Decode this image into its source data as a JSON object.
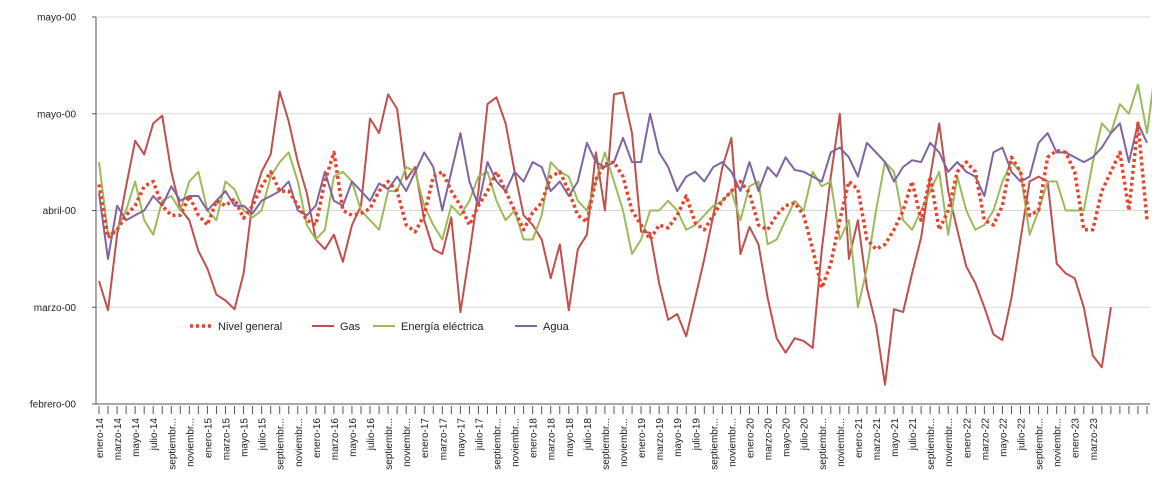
{
  "chart_data": {
    "type": "line",
    "y_tick_labels": [
      "febrero-00",
      "marzo-00",
      "abril-00",
      "mayo-00",
      "mayo-00"
    ],
    "ylim": [
      0,
      4
    ],
    "grid": "horizontal",
    "legend_position": "lower-left inside plot",
    "x_tick_labels": [
      "enero-14",
      "marzo-14",
      "mayo-14",
      "julio-14",
      "septiembr...",
      "noviembr...",
      "enero-15",
      "marzo-15",
      "mayo-15",
      "julio-15",
      "septiembr...",
      "noviembr...",
      "enero-16",
      "marzo-16",
      "mayo-16",
      "julio-16",
      "septiembr...",
      "noviembr...",
      "enero-17",
      "marzo-17",
      "mayo-17",
      "julio-17",
      "septiembr...",
      "noviembr...",
      "enero-18",
      "marzo-18",
      "mayo-18",
      "julio-18",
      "septiembr...",
      "noviembr...",
      "enero-19",
      "marzo-19",
      "mayo-19",
      "julio-19",
      "septiembr...",
      "noviembr...",
      "enero-20",
      "marzo-20",
      "mayo-20",
      "julio-20",
      "septiembr...",
      "noviembr...",
      "enero-21",
      "marzo-21",
      "mayo-21",
      "julio-21",
      "septiembr...",
      "noviembr...",
      "enero-22",
      "marzo-22",
      "mayo-22",
      "julio-22",
      "septiembr...",
      "noviembr...",
      "enero-23",
      "marzo-23"
    ],
    "series": [
      {
        "name": "Nivel general",
        "color": "#e8432e",
        "style": "dotted",
        "values": [
          2.27,
          1.72,
          1.8,
          1.95,
          2.05,
          2.25,
          2.3,
          2.05,
          1.95,
          1.95,
          2.15,
          1.95,
          1.85,
          2.1,
          2.05,
          2.12,
          1.92,
          2.05,
          2.25,
          2.4,
          2.2,
          2.2,
          2.05,
          1.9,
          1.85,
          2.3,
          2.6,
          2.0,
          1.95,
          1.97,
          2.02,
          2.2,
          2.3,
          2.2,
          1.85,
          1.78,
          1.95,
          2.35,
          2.4,
          2.2,
          2.05,
          1.85,
          2.05,
          2.2,
          2.4,
          2.2,
          2.0,
          1.8,
          1.98,
          2.08,
          2.35,
          2.4,
          2.2,
          1.95,
          1.88,
          2.32,
          2.48,
          2.5,
          2.35,
          2.0,
          1.85,
          1.7,
          1.85,
          1.82,
          1.95,
          2.15,
          1.87,
          1.8,
          1.95,
          2.1,
          2.2,
          2.3,
          2.18,
          1.85,
          1.8,
          1.95,
          2.05,
          2.08,
          1.95,
          1.6,
          1.2,
          1.45,
          1.9,
          2.3,
          2.22,
          1.7,
          1.6,
          1.65,
          1.8,
          2.0,
          2.3,
          1.9,
          2.35,
          1.8,
          2.0,
          2.4,
          2.5,
          2.4,
          1.9,
          1.85,
          2.05,
          2.55,
          2.4,
          1.95,
          2.0,
          2.55,
          2.62,
          2.6,
          2.4,
          1.8,
          1.8,
          2.2,
          2.4,
          2.6,
          2.0,
          2.9,
          1.9
        ]
      },
      {
        "name": "Gas",
        "color": "#c0504d",
        "style": "solid",
        "values": [
          1.27,
          0.97,
          1.75,
          2.25,
          2.72,
          2.58,
          2.9,
          2.98,
          2.4,
          2.02,
          1.9,
          1.58,
          1.4,
          1.13,
          1.07,
          0.98,
          1.35,
          2.1,
          2.4,
          2.58,
          3.23,
          2.92,
          2.5,
          2.18,
          1.7,
          1.6,
          1.75,
          1.47,
          1.85,
          2.05,
          2.95,
          2.8,
          3.2,
          3.05,
          2.32,
          2.45,
          1.9,
          1.6,
          1.55,
          1.93,
          0.95,
          1.55,
          2.2,
          3.1,
          3.17,
          2.9,
          2.4,
          1.95,
          1.85,
          1.7,
          1.3,
          1.65,
          0.97,
          1.6,
          1.75,
          2.6,
          2.0,
          3.2,
          3.22,
          2.8,
          1.78,
          1.77,
          1.25,
          0.87,
          0.93,
          0.7,
          1.1,
          1.5,
          1.95,
          2.45,
          2.75,
          1.55,
          1.83,
          1.65,
          1.1,
          0.68,
          0.53,
          0.68,
          0.65,
          0.58,
          1.6,
          2.35,
          3.0,
          1.5,
          1.9,
          1.2,
          0.82,
          0.2,
          0.98,
          0.95,
          1.35,
          1.72,
          2.35,
          2.9,
          2.2,
          1.8,
          1.42,
          1.25,
          1.0,
          0.72,
          0.66,
          1.1,
          1.7,
          2.3,
          2.35,
          2.3,
          1.45,
          1.35,
          1.3,
          1.0,
          0.5,
          0.38,
          1.0
        ]
      },
      {
        "name": "Energía eléctrica",
        "color": "#9bbb59",
        "style": "solid",
        "values": [
          2.5,
          1.75,
          1.8,
          2.0,
          2.3,
          1.9,
          1.75,
          2.1,
          2.15,
          2.0,
          2.3,
          2.4,
          2.0,
          1.9,
          2.3,
          2.22,
          2.0,
          1.93,
          2.0,
          2.35,
          2.5,
          2.6,
          2.3,
          1.85,
          1.7,
          1.8,
          2.35,
          2.4,
          2.3,
          2.0,
          1.9,
          1.8,
          2.2,
          2.2,
          2.45,
          2.4,
          2.05,
          1.85,
          1.7,
          2.05,
          1.95,
          2.1,
          2.35,
          2.4,
          2.1,
          1.9,
          2.0,
          1.7,
          1.7,
          1.95,
          2.5,
          2.4,
          2.35,
          2.1,
          2.0,
          2.3,
          2.6,
          2.3,
          2.0,
          1.55,
          1.7,
          2.0,
          2.0,
          2.1,
          2.0,
          1.8,
          1.85,
          1.95,
          2.05,
          2.1,
          2.2,
          1.9,
          2.25,
          2.3,
          1.65,
          1.7,
          1.9,
          2.1,
          2.0,
          2.4,
          2.25,
          2.3,
          1.7,
          1.9,
          1.0,
          1.4,
          2.0,
          2.5,
          2.4,
          1.9,
          1.8,
          2.0,
          2.2,
          2.4,
          1.75,
          2.35,
          2.0,
          1.8,
          1.85,
          2.0,
          2.3,
          2.5,
          2.4,
          1.75,
          2.0,
          2.3,
          2.3,
          2.0,
          2.0,
          2.0,
          2.5,
          2.9,
          2.8,
          3.1,
          3.0,
          3.3,
          2.8,
          3.5,
          2.2
        ]
      },
      {
        "name": "Agua",
        "color": "#8064a2",
        "style": "solid",
        "values": [
          2.18,
          1.5,
          2.05,
          1.9,
          1.95,
          2.0,
          2.15,
          2.05,
          2.25,
          2.1,
          2.15,
          2.15,
          2.0,
          2.1,
          2.2,
          2.05,
          2.05,
          1.97,
          2.1,
          2.15,
          2.2,
          2.3,
          2.0,
          1.95,
          2.05,
          2.4,
          2.1,
          2.05,
          2.3,
          2.2,
          2.1,
          2.28,
          2.22,
          2.35,
          2.2,
          2.4,
          2.6,
          2.45,
          2.0,
          2.4,
          2.8,
          2.3,
          2.05,
          2.5,
          2.3,
          2.2,
          2.4,
          2.3,
          2.5,
          2.45,
          2.2,
          2.3,
          2.15,
          2.3,
          2.7,
          2.5,
          2.45,
          2.5,
          2.75,
          2.5,
          2.5,
          3.0,
          2.6,
          2.45,
          2.2,
          2.35,
          2.4,
          2.3,
          2.45,
          2.5,
          2.4,
          2.2,
          2.5,
          2.2,
          2.45,
          2.35,
          2.55,
          2.42,
          2.4,
          2.35,
          2.3,
          2.6,
          2.65,
          2.55,
          2.35,
          2.7,
          2.6,
          2.5,
          2.3,
          2.45,
          2.52,
          2.5,
          2.7,
          2.6,
          2.4,
          2.5,
          2.4,
          2.35,
          2.15,
          2.6,
          2.65,
          2.4,
          2.3,
          2.35,
          2.7,
          2.8,
          2.6,
          2.6,
          2.55,
          2.5,
          2.55,
          2.65,
          2.8,
          2.9,
          2.5,
          2.9,
          2.7
        ]
      }
    ]
  }
}
